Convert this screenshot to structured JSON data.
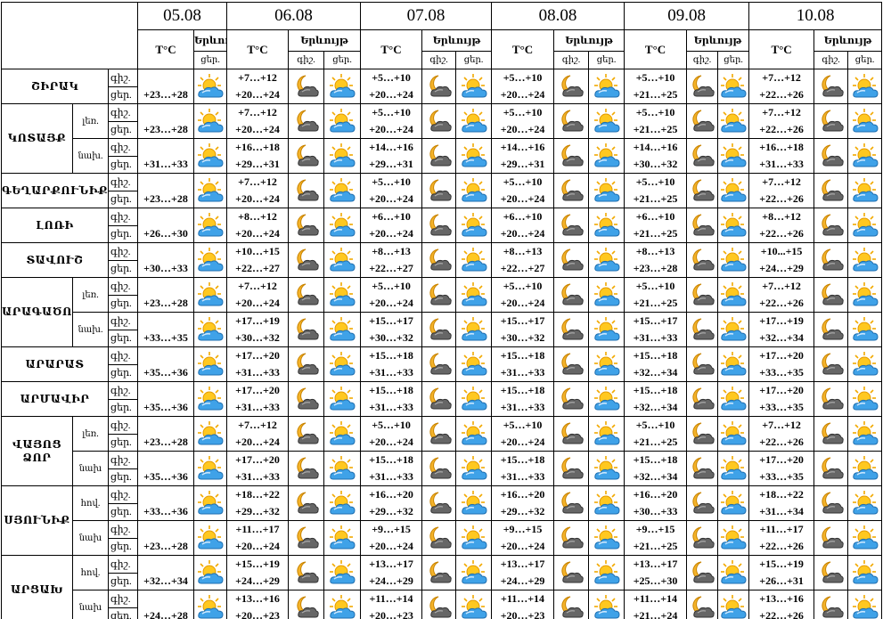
{
  "header": {
    "dates": [
      "05.08",
      "06.08",
      "07.08",
      "08.08",
      "09.08",
      "10.08"
    ],
    "temp_label": "T°C",
    "phenomenon_label": "Երևույթ",
    "night": "գիշ.",
    "day": "ցեր."
  },
  "regions": [
    {
      "name": "ՇԻՐԱԿ",
      "zones": [
        {
          "today": "+23…+28",
          "forecast": [
            [
              "+7…+12",
              "+20…+24"
            ],
            [
              "+5…+10",
              "+20…+24"
            ],
            [
              "+5…+10",
              "+20…+24"
            ],
            [
              "+5…+10",
              "+21…+25"
            ],
            [
              "+7…+12",
              "+22…+26"
            ]
          ]
        }
      ]
    },
    {
      "name": "ԿՈՏԱՅՔ",
      "zones": [
        {
          "label": "լեռ.",
          "today": "+23…+28",
          "forecast": [
            [
              "+7…+12",
              "+20…+24"
            ],
            [
              "+5…+10",
              "+20…+24"
            ],
            [
              "+5…+10",
              "+20…+24"
            ],
            [
              "+5…+10",
              "+21…+25"
            ],
            [
              "+7…+12",
              "+22…+26"
            ]
          ]
        },
        {
          "label": "նախ.",
          "today": "+31…+33",
          "forecast": [
            [
              "+16…+18",
              "+29…+31"
            ],
            [
              "+14…+16",
              "+29…+31"
            ],
            [
              "+14…+16",
              "+29…+31"
            ],
            [
              "+14…+16",
              "+30…+32"
            ],
            [
              "+16…+18",
              "+31…+33"
            ]
          ]
        }
      ]
    },
    {
      "name": "ԳԵՂԱՐՔՈՒՆԻՔ",
      "zones": [
        {
          "today": "+23…+28",
          "forecast": [
            [
              "+7…+12",
              "+20…+24"
            ],
            [
              "+5…+10",
              "+20…+24"
            ],
            [
              "+5…+10",
              "+20…+24"
            ],
            [
              "+5…+10",
              "+21…+25"
            ],
            [
              "+7…+12",
              "+22…+26"
            ]
          ]
        }
      ]
    },
    {
      "name": "ԼՈՌԻ",
      "zones": [
        {
          "today": "+26…+30",
          "forecast": [
            [
              "+8…+12",
              "+20…+24"
            ],
            [
              "+6…+10",
              "+20…+24"
            ],
            [
              "+6…+10",
              "+20…+24"
            ],
            [
              "+6…+10",
              "+21…+25"
            ],
            [
              "+8…+12",
              "+22…+26"
            ]
          ]
        }
      ]
    },
    {
      "name": "ՏԱՎՈՒՇ",
      "zones": [
        {
          "today": "+30…+33",
          "forecast": [
            [
              "+10…+15",
              "+22…+27"
            ],
            [
              "+8…+13",
              "+22…+27"
            ],
            [
              "+8…+13",
              "+22…+27"
            ],
            [
              "+8…+13",
              "+23…+28"
            ],
            [
              "+10...+15",
              "+24…+29"
            ]
          ]
        }
      ]
    },
    {
      "name": "ԱՐԱԳԱԾՈՏՆ",
      "zones": [
        {
          "label": "լեռ.",
          "today": "+23…+28",
          "forecast": [
            [
              "+7…+12",
              "+20…+24"
            ],
            [
              "+5…+10",
              "+20…+24"
            ],
            [
              "+5…+10",
              "+20…+24"
            ],
            [
              "+5…+10",
              "+21…+25"
            ],
            [
              "+7…+12",
              "+22…+26"
            ]
          ]
        },
        {
          "label": "նախ.",
          "today": "+33…+35",
          "forecast": [
            [
              "+17…+19",
              "+30…+32"
            ],
            [
              "+15…+17",
              "+30…+32"
            ],
            [
              "+15…+17",
              "+30…+32"
            ],
            [
              "+15…+17",
              "+31…+33"
            ],
            [
              "+17…+19",
              "+32…+34"
            ]
          ]
        }
      ]
    },
    {
      "name": "ԱՐԱՐԱՏ",
      "zones": [
        {
          "today": "+35…+36",
          "forecast": [
            [
              "+17…+20",
              "+31…+33"
            ],
            [
              "+15…+18",
              "+31…+33"
            ],
            [
              "+15…+18",
              "+31…+33"
            ],
            [
              "+15…+18",
              "+32…+34"
            ],
            [
              "+17…+20",
              "+33…+35"
            ]
          ]
        }
      ]
    },
    {
      "name": "ԱՐՄԱՎԻՐ",
      "zones": [
        {
          "today": "+35…+36",
          "forecast": [
            [
              "+17…+20",
              "+31…+33"
            ],
            [
              "+15…+18",
              "+31…+33"
            ],
            [
              "+15…+18",
              "+31…+33"
            ],
            [
              "+15…+18",
              "+32…+34"
            ],
            [
              "+17…+20",
              "+33…+35"
            ]
          ]
        }
      ]
    },
    {
      "name": "ՎԱՅՈՑ ՁՈՐ",
      "zones": [
        {
          "label": "լեռ.",
          "today": "+23…+28",
          "forecast": [
            [
              "+7…+12",
              "+20…+24"
            ],
            [
              "+5…+10",
              "+20…+24"
            ],
            [
              "+5…+10",
              "+20…+24"
            ],
            [
              "+5…+10",
              "+21…+25"
            ],
            [
              "+7…+12",
              "+22…+26"
            ]
          ]
        },
        {
          "label": "նախ",
          "today": "+35…+36",
          "forecast": [
            [
              "+17…+20",
              "+31…+33"
            ],
            [
              "+15…+18",
              "+31…+33"
            ],
            [
              "+15…+18",
              "+31…+33"
            ],
            [
              "+15…+18",
              "+32…+34"
            ],
            [
              "+17…+20",
              "+33…+35"
            ]
          ]
        }
      ]
    },
    {
      "name": "ՍՅՈՒՆԻՔ",
      "zones": [
        {
          "label": "հով.",
          "today": "+33…+36",
          "forecast": [
            [
              "+18…+22",
              "+29…+32"
            ],
            [
              "+16…+20",
              "+29…+32"
            ],
            [
              "+16…+20",
              "+29…+32"
            ],
            [
              "+16…+20",
              "+30…+33"
            ],
            [
              "+18…+22",
              "+31…+34"
            ]
          ]
        },
        {
          "label": "նախ",
          "today": "+23…+28",
          "forecast": [
            [
              "+11…+17",
              "+20…+24"
            ],
            [
              "+9…+15",
              "+20…+24"
            ],
            [
              "+9…+15",
              "+20…+24"
            ],
            [
              "+9…+15",
              "+21…+25"
            ],
            [
              "+11…+17",
              "+22…+26"
            ]
          ]
        }
      ]
    },
    {
      "name": "ԱՐՑԱԽ",
      "zones": [
        {
          "label": "հով.",
          "today": "+32…+34",
          "forecast": [
            [
              "+15…+19",
              "+24…+29"
            ],
            [
              "+13…+17",
              "+24…+29"
            ],
            [
              "+13…+17",
              "+24…+29"
            ],
            [
              "+13…+17",
              "+25…+30"
            ],
            [
              "+15…+19",
              "+26…+31"
            ]
          ]
        },
        {
          "label": "նախ",
          "today": "+24…+28",
          "forecast": [
            [
              "+13…+16",
              "+20…+23"
            ],
            [
              "+11…+14",
              "+20…+23"
            ],
            [
              "+11…+14",
              "+20…+23"
            ],
            [
              "+11…+14",
              "+21…+24"
            ],
            [
              "+13…+16",
              "+22…+26"
            ]
          ]
        }
      ]
    }
  ]
}
